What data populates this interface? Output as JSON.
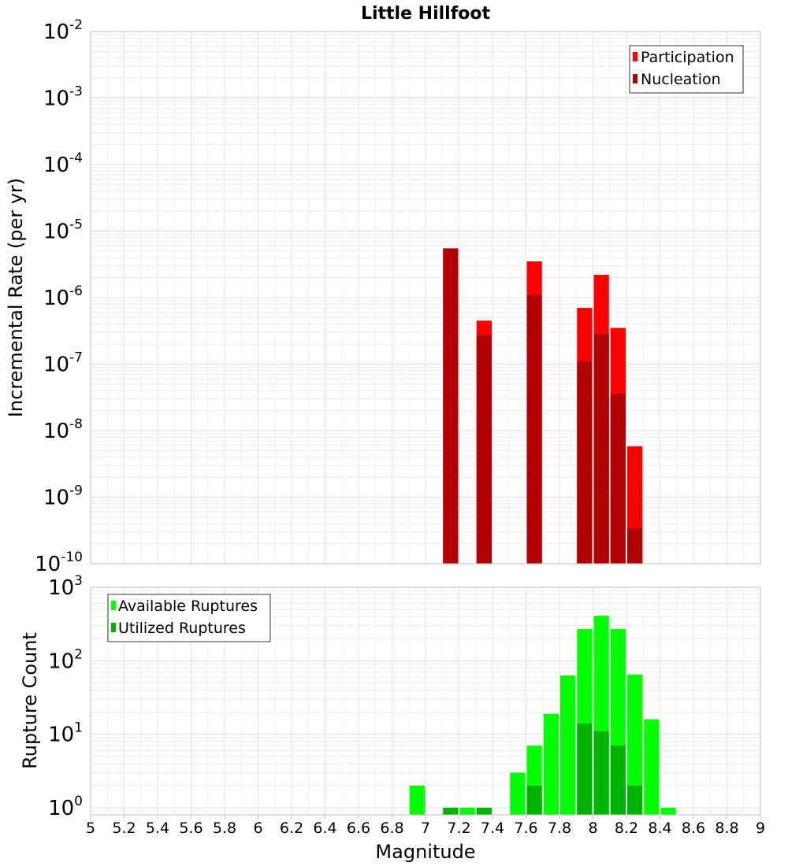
{
  "chart_data": [
    {
      "type": "bar",
      "scale": "log",
      "title": "Little Hillfoot",
      "ylabel": "Incremental Rate (per yr)",
      "xlim": [
        5,
        9
      ],
      "ylim": [
        1e-10,
        0.01
      ],
      "grid": true,
      "legend_position": "top-right",
      "y_ticks": [
        {
          "base": "10",
          "exp": "-10",
          "value": 1e-10
        },
        {
          "base": "10",
          "exp": "-9",
          "value": 1e-09
        },
        {
          "base": "10",
          "exp": "-8",
          "value": 1e-08
        },
        {
          "base": "10",
          "exp": "-7",
          "value": 1e-07
        },
        {
          "base": "10",
          "exp": "-6",
          "value": 1e-06
        },
        {
          "base": "10",
          "exp": "-5",
          "value": 1e-05
        },
        {
          "base": "10",
          "exp": "-4",
          "value": 0.0001
        },
        {
          "base": "10",
          "exp": "-3",
          "value": 0.001
        },
        {
          "base": "10",
          "exp": "-2",
          "value": 0.01
        }
      ],
      "series": [
        {
          "name": "Participation",
          "color": "#ff0000",
          "points": [
            {
              "x": 7.15,
              "y": 5.5e-06
            },
            {
              "x": 7.35,
              "y": 4.5e-07
            },
            {
              "x": 7.65,
              "y": 3.5e-06
            },
            {
              "x": 7.95,
              "y": 7e-07
            },
            {
              "x": 8.05,
              "y": 2.2e-06
            },
            {
              "x": 8.15,
              "y": 3.5e-07
            },
            {
              "x": 8.25,
              "y": 5.8e-09
            }
          ]
        },
        {
          "name": "Nucleation",
          "color": "#b30000",
          "points": [
            {
              "x": 7.15,
              "y": 5.5e-06
            },
            {
              "x": 7.35,
              "y": 2.7e-07
            },
            {
              "x": 7.65,
              "y": 1.1e-06
            },
            {
              "x": 7.95,
              "y": 1.1e-07
            },
            {
              "x": 8.05,
              "y": 2.8e-07
            },
            {
              "x": 8.15,
              "y": 3.6e-08
            },
            {
              "x": 8.25,
              "y": 3.4e-10
            }
          ]
        }
      ]
    },
    {
      "type": "bar",
      "scale": "log",
      "title": "",
      "xlabel": "Magnitude",
      "ylabel": "Rupture Count",
      "xlim": [
        5,
        9
      ],
      "ylim": [
        0.8,
        1000
      ],
      "grid": true,
      "legend_position": "top-left",
      "x_ticks": [
        "5",
        "5.2",
        "5.4",
        "5.6",
        "5.8",
        "6",
        "6.2",
        "6.4",
        "6.6",
        "6.8",
        "7",
        "7.2",
        "7.4",
        "7.6",
        "7.8",
        "8",
        "8.2",
        "8.4",
        "8.6",
        "8.8",
        "9"
      ],
      "y_ticks": [
        {
          "base": "10",
          "exp": "0",
          "value": 1
        },
        {
          "base": "10",
          "exp": "1",
          "value": 10
        },
        {
          "base": "10",
          "exp": "2",
          "value": 100
        },
        {
          "base": "10",
          "exp": "3",
          "value": 1000
        }
      ],
      "series": [
        {
          "name": "Available Ruptures",
          "color": "#00ff00",
          "points": [
            {
              "x": 6.95,
              "y": 2
            },
            {
              "x": 7.15,
              "y": 1
            },
            {
              "x": 7.25,
              "y": 1
            },
            {
              "x": 7.35,
              "y": 1
            },
            {
              "x": 7.55,
              "y": 3
            },
            {
              "x": 7.65,
              "y": 7
            },
            {
              "x": 7.75,
              "y": 19
            },
            {
              "x": 7.85,
              "y": 63
            },
            {
              "x": 7.95,
              "y": 270
            },
            {
              "x": 8.05,
              "y": 410
            },
            {
              "x": 8.15,
              "y": 270
            },
            {
              "x": 8.25,
              "y": 65
            },
            {
              "x": 8.35,
              "y": 16
            },
            {
              "x": 8.45,
              "y": 1
            }
          ]
        },
        {
          "name": "Utilized Ruptures",
          "color": "#00b300",
          "points": [
            {
              "x": 7.15,
              "y": 1
            },
            {
              "x": 7.35,
              "y": 1
            },
            {
              "x": 7.65,
              "y": 2
            },
            {
              "x": 7.95,
              "y": 14
            },
            {
              "x": 8.05,
              "y": 11
            },
            {
              "x": 8.15,
              "y": 7
            },
            {
              "x": 8.25,
              "y": 2
            }
          ]
        }
      ]
    }
  ]
}
